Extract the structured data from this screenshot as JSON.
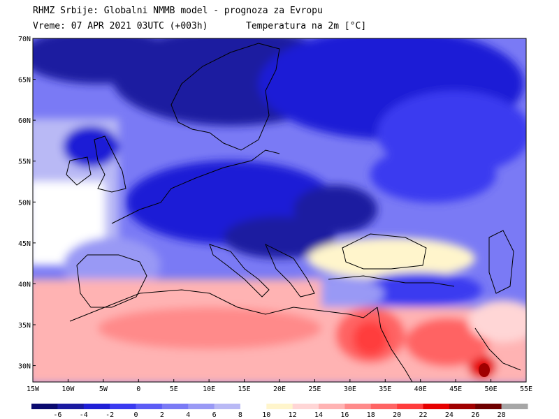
{
  "header": {
    "line1": "RHMZ Srbije: Globalni NMMB model - prognoza za Evropu",
    "line2_left": "Vreme: 07 APR 2021 03UTC (+003h)",
    "line2_right": "Temperatura na 2m [°C]"
  },
  "map": {
    "lon_range": [
      -15,
      55
    ],
    "lat_range": [
      28,
      70
    ],
    "lat_ticks": [
      {
        "value": 70,
        "label": "70N"
      },
      {
        "value": 65,
        "label": "65N"
      },
      {
        "value": 60,
        "label": "60N"
      },
      {
        "value": 55,
        "label": "55N"
      },
      {
        "value": 50,
        "label": "50N"
      },
      {
        "value": 45,
        "label": "45N"
      },
      {
        "value": 40,
        "label": "40N"
      },
      {
        "value": 35,
        "label": "35N"
      },
      {
        "value": 30,
        "label": "30N"
      }
    ],
    "lon_ticks": [
      {
        "value": -15,
        "label": "15W"
      },
      {
        "value": -10,
        "label": "10W"
      },
      {
        "value": -5,
        "label": "5W"
      },
      {
        "value": 0,
        "label": "0"
      },
      {
        "value": 5,
        "label": "5E"
      },
      {
        "value": 10,
        "label": "10E"
      },
      {
        "value": 15,
        "label": "15E"
      },
      {
        "value": 20,
        "label": "20E"
      },
      {
        "value": 25,
        "label": "25E"
      },
      {
        "value": 30,
        "label": "30E"
      },
      {
        "value": 35,
        "label": "35E"
      },
      {
        "value": 40,
        "label": "40E"
      },
      {
        "value": 45,
        "label": "45E"
      },
      {
        "value": 50,
        "label": "50E"
      },
      {
        "value": 55,
        "label": "55E"
      }
    ]
  },
  "colorbar": {
    "colors": [
      "#0a0a6e",
      "#1a1aa0",
      "#1f1fd6",
      "#3a3af0",
      "#5c5cf5",
      "#7a7af5",
      "#9999f5",
      "#b9b9f5",
      "#ffffff",
      "#fff5cc",
      "#ffd6d6",
      "#ffb3b3",
      "#ff8a8a",
      "#ff6464",
      "#ff3c3c",
      "#e60000",
      "#a00000",
      "#6e0000",
      "#a6a6a6"
    ],
    "labels": [
      "-6",
      "-4",
      "-2",
      "0",
      "2",
      "4",
      "6",
      "8",
      "10",
      "12",
      "14",
      "16",
      "18",
      "20",
      "22",
      "24",
      "26",
      "28"
    ]
  }
}
